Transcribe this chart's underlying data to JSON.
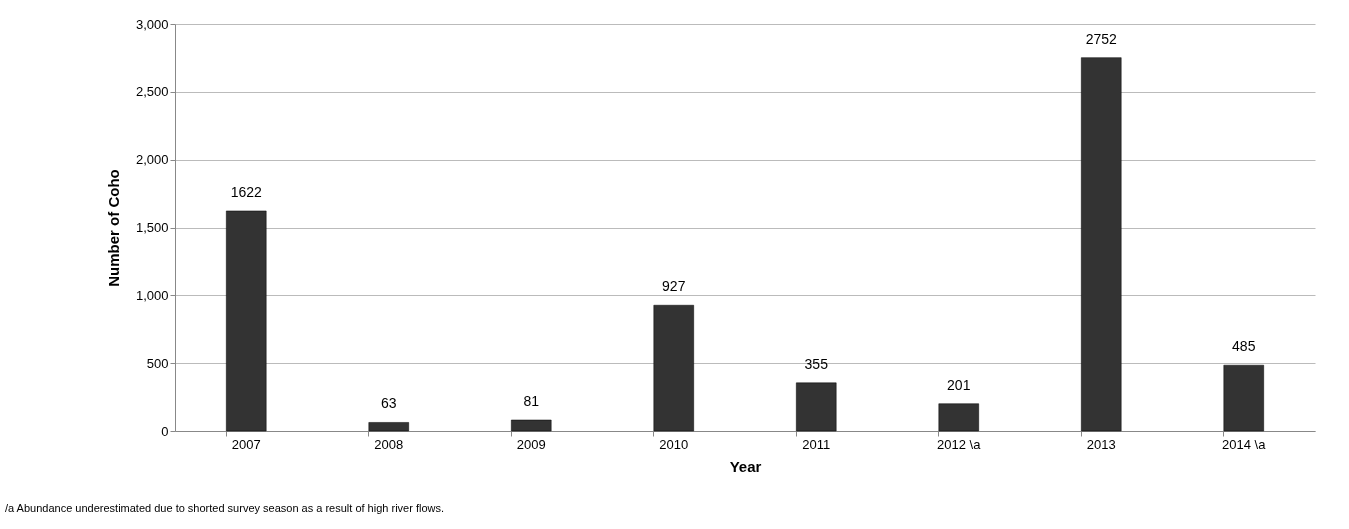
{
  "chart_data": {
    "type": "bar",
    "xlabel": "Year",
    "ylabel": "Number of Coho",
    "categories": [
      "2007",
      "2008",
      "2009",
      "2010",
      "2011",
      "2012 \\a",
      "2013",
      "2014 \\a"
    ],
    "values": [
      1622,
      63,
      81,
      927,
      355,
      201,
      2752,
      485
    ],
    "color": "#333333",
    "data_labels": true,
    "grid": "y",
    "ylim": [
      0,
      3000
    ],
    "yticks": [
      0,
      500,
      {
        "value": 1000,
        "label": "1,000"
      },
      {
        "value": 1500,
        "label": "1,500"
      },
      {
        "value": 2000,
        "label": "2,000"
      },
      {
        "value": 2500,
        "label": "2,500"
      },
      {
        "value": 3000,
        "label": "3,000"
      }
    ],
    "annotations": [
      "/a Abundance underestimated due to shorted survey season as a result of high river flows."
    ]
  }
}
